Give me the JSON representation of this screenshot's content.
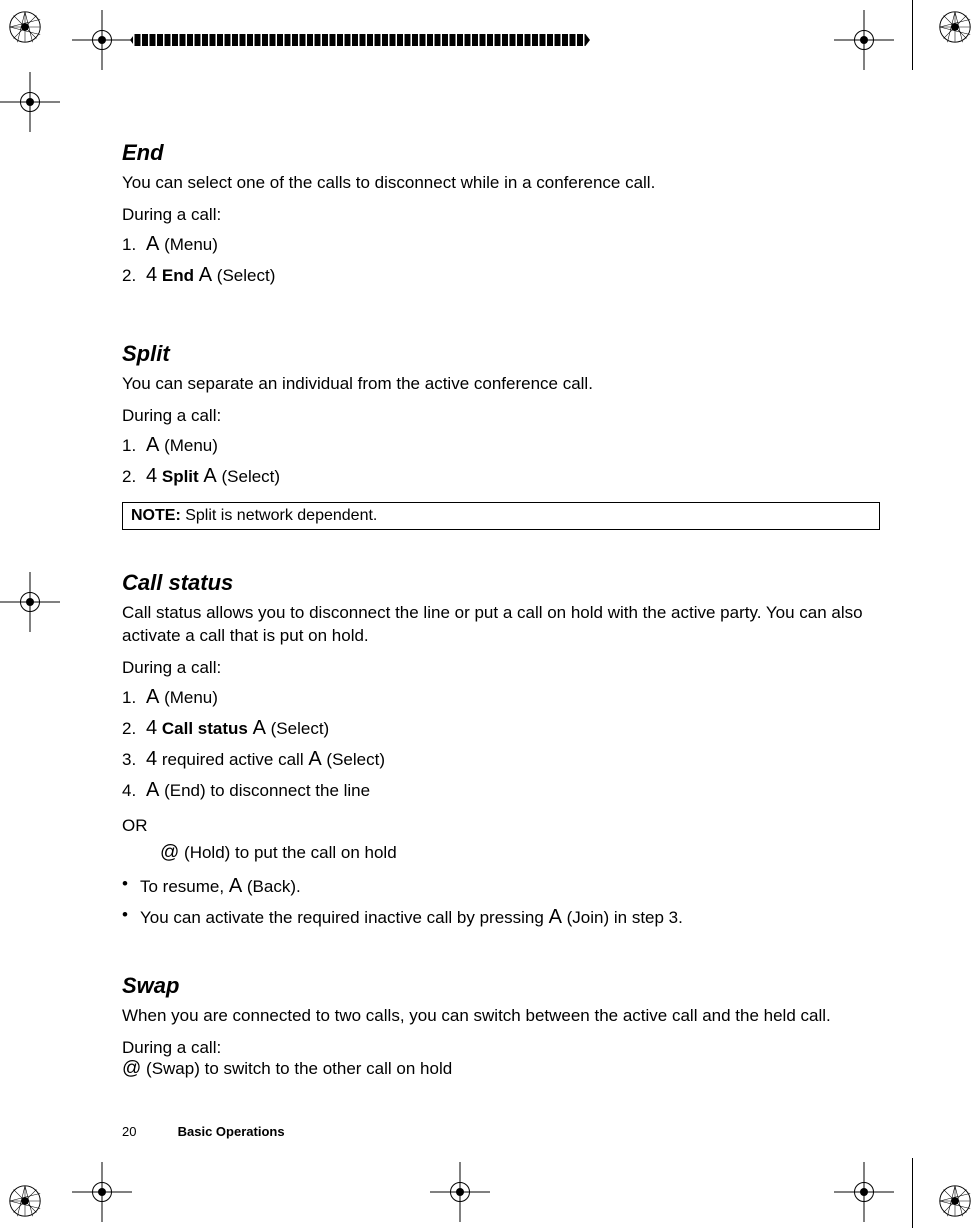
{
  "page": {
    "number": "20",
    "chapter": "Basic Operations"
  },
  "symbols": {
    "A": "A",
    "four": "4",
    "at": "@"
  },
  "end": {
    "title": "End",
    "intro": "You can select one of the calls to disconnect while in a conference call.",
    "during": "During a call:",
    "steps": [
      {
        "n": "1.",
        "parts": [
          {
            "sym": "A"
          },
          {
            "paren": "(Menu)"
          }
        ]
      },
      {
        "n": "2.",
        "parts": [
          {
            "sym": "four"
          },
          {
            "bold": "End"
          },
          {
            "sym": "A"
          },
          {
            "paren": "(Select)"
          }
        ]
      }
    ]
  },
  "split": {
    "title": "Split",
    "intro": "You can separate an individual from the active conference call.",
    "during": "During a call:",
    "steps": [
      {
        "n": "1.",
        "parts": [
          {
            "sym": "A"
          },
          {
            "paren": "(Menu)"
          }
        ]
      },
      {
        "n": "2.",
        "parts": [
          {
            "sym": "four"
          },
          {
            "bold": "Split"
          },
          {
            "sym": "A"
          },
          {
            "paren": "(Select)"
          }
        ]
      }
    ],
    "note_label": "NOTE:",
    "note_text": "Split is network dependent."
  },
  "callstatus": {
    "title": "Call status",
    "intro": "Call status allows you to disconnect the line or put a call on hold with the active party. You can also activate a call that is put on hold.",
    "during": "During a call:",
    "steps": [
      {
        "n": "1.",
        "parts": [
          {
            "sym": "A"
          },
          {
            "paren": "(Menu)"
          }
        ]
      },
      {
        "n": "2.",
        "parts": [
          {
            "sym": "four"
          },
          {
            "bold": "Call status"
          },
          {
            "sym": "A"
          },
          {
            "paren": "(Select)"
          }
        ]
      },
      {
        "n": "3.",
        "parts": [
          {
            "sym": "four"
          },
          {
            "text": "required active call"
          },
          {
            "sym": "A"
          },
          {
            "paren": "(Select)"
          }
        ]
      },
      {
        "n": "4.",
        "parts": [
          {
            "sym": "A"
          },
          {
            "paren": "(End) to disconnect the line"
          }
        ]
      }
    ],
    "or": "OR",
    "or_line_parts": [
      {
        "sym": "at"
      },
      {
        "paren": "(Hold) to put the call on hold"
      }
    ],
    "bullets": [
      [
        {
          "text": "To resume, "
        },
        {
          "sym": "A"
        },
        {
          "paren": "(Back)."
        }
      ],
      [
        {
          "text": "You can activate the required inactive call by pressing "
        },
        {
          "sym": "A"
        },
        {
          "paren": "(Join) in step 3."
        }
      ]
    ]
  },
  "swap": {
    "title": "Swap",
    "intro": "When you are connected to two calls, you can switch between the active call and the held call.",
    "during": "During a call:",
    "line_parts": [
      {
        "sym": "at"
      },
      {
        "paren": "(Swap) to switch to the other call on hold"
      }
    ]
  }
}
